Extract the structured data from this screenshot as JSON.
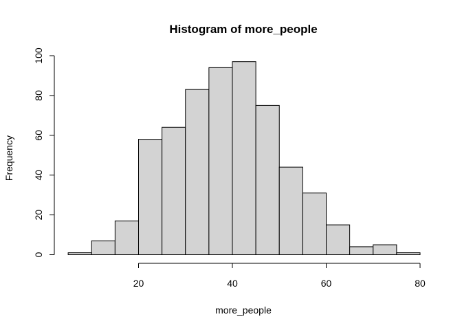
{
  "chart_data": {
    "type": "bar",
    "subtype": "histogram",
    "title": "Histogram of more_people",
    "xlabel": "more_people",
    "ylabel": "Frequency",
    "bin_width": 5,
    "bins": [
      {
        "start": 5,
        "end": 10,
        "count": 1
      },
      {
        "start": 10,
        "end": 15,
        "count": 7
      },
      {
        "start": 15,
        "end": 20,
        "count": 17
      },
      {
        "start": 20,
        "end": 25,
        "count": 58
      },
      {
        "start": 25,
        "end": 30,
        "count": 64
      },
      {
        "start": 30,
        "end": 35,
        "count": 83
      },
      {
        "start": 35,
        "end": 40,
        "count": 94
      },
      {
        "start": 40,
        "end": 45,
        "count": 97
      },
      {
        "start": 45,
        "end": 50,
        "count": 75
      },
      {
        "start": 50,
        "end": 55,
        "count": 44
      },
      {
        "start": 55,
        "end": 60,
        "count": 31
      },
      {
        "start": 60,
        "end": 65,
        "count": 15
      },
      {
        "start": 65,
        "end": 70,
        "count": 4
      },
      {
        "start": 70,
        "end": 75,
        "count": 5
      },
      {
        "start": 75,
        "end": 80,
        "count": 1
      }
    ],
    "xlim": [
      5,
      80
    ],
    "ylim": [
      0,
      100
    ],
    "x_ticks": [
      20,
      40,
      60,
      80
    ],
    "y_ticks": [
      0,
      20,
      40,
      60,
      80,
      100
    ],
    "bar_fill": "#d3d3d3",
    "bar_stroke": "#000000",
    "grid": false,
    "legend": "none"
  }
}
